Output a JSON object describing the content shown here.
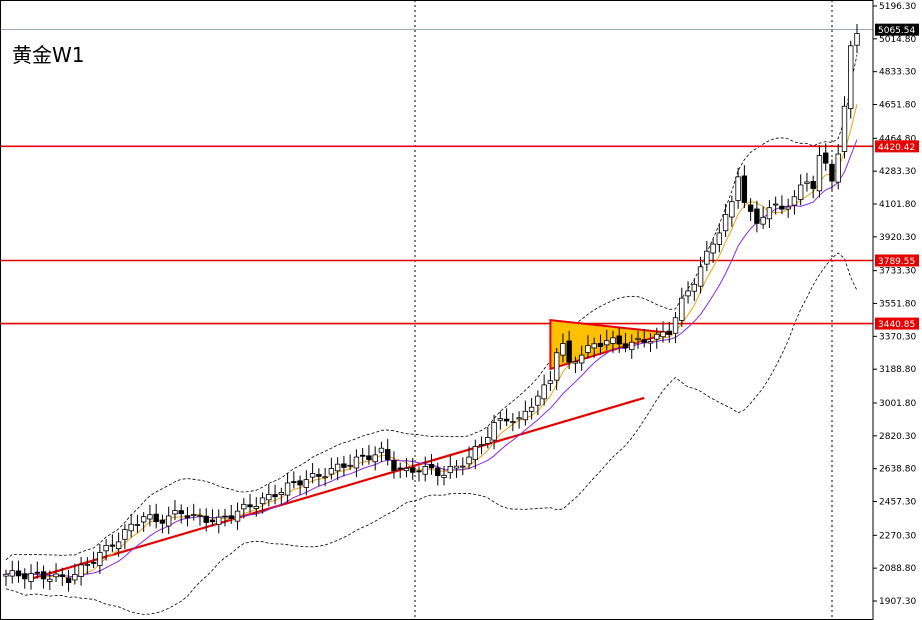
{
  "chart_data": {
    "type": "candlestick",
    "title": "黄金W1",
    "y_ticks": [
      "5196.30",
      "5014.80",
      "4833.30",
      "4651.80",
      "4464.80",
      "4283.30",
      "4101.80",
      "3920.30",
      "3733.30",
      "3551.80",
      "3370.30",
      "3188.80",
      "3001.80",
      "2820.30",
      "2638.80",
      "2457.30",
      "2270.30",
      "2088.80",
      "1907.30"
    ],
    "ylim": [
      1860,
      5280
    ],
    "price_labels": [
      {
        "value": 5065.54,
        "label": "5065.54",
        "style": "current"
      },
      {
        "value": 4420.42,
        "label": "4420.42",
        "style": "level"
      },
      {
        "value": 3789.55,
        "label": "3789.55",
        "style": "level"
      },
      {
        "value": 3440.85,
        "label": "3440.85",
        "style": "level"
      }
    ],
    "horizontal_levels": [
      4420.42,
      3789.55,
      3440.85
    ],
    "level_color": "#e60000",
    "trendline_color": "#e60000",
    "triangle_fill": "#ffc000",
    "ma_fast_color": "#e8a317",
    "ma_slow_color": "#8a2be2",
    "bands_color": "#000000",
    "grid": false
  }
}
